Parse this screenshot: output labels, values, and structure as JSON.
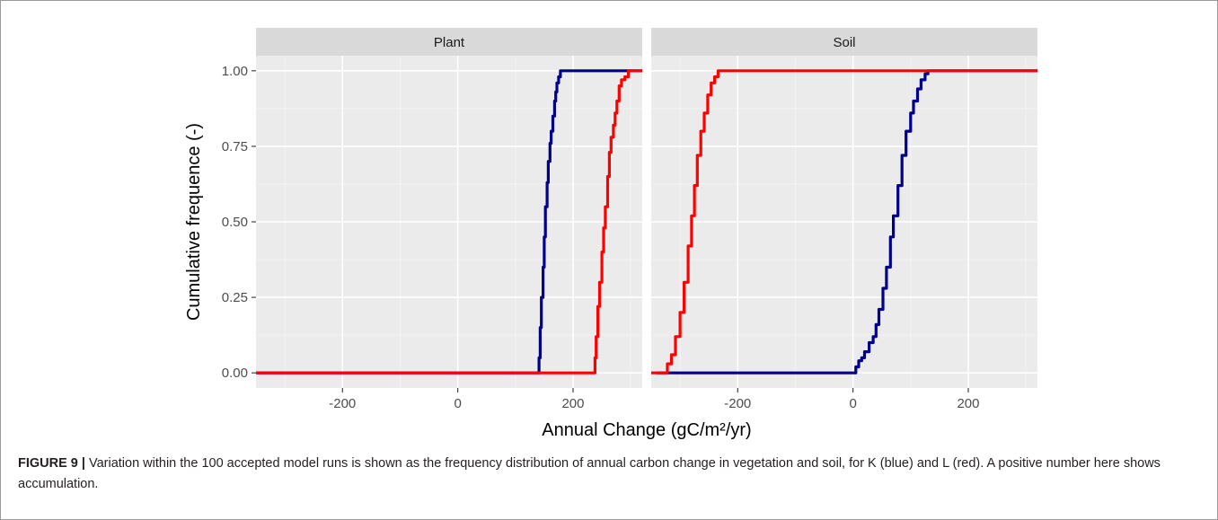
{
  "chart_data": {
    "type": "line",
    "ylabel": "Cumulative frequence (-)",
    "xlabel": "Annual Change  (gC/m²/yr)",
    "x_ticks": [
      -200,
      0,
      200
    ],
    "y_ticks": [
      0.0,
      0.25,
      0.5,
      0.75,
      1.0
    ],
    "y_tick_labels": [
      "0.00",
      "0.25",
      "0.50",
      "0.75",
      "1.00"
    ],
    "xlim": [
      -350,
      320
    ],
    "ylim": [
      -0.05,
      1.05
    ],
    "grid": true,
    "panels": [
      {
        "title": "Plant",
        "series": [
          {
            "color": "#00008b",
            "x": [
              -350,
              140,
              141,
              143,
              145,
              148,
              150,
              152,
              155,
              157,
              160,
              162,
              165,
              168,
              170,
              172,
              175,
              178,
              182,
              200,
              320
            ],
            "y": [
              0,
              0,
              0.05,
              0.15,
              0.25,
              0.35,
              0.45,
              0.55,
              0.63,
              0.7,
              0.76,
              0.8,
              0.85,
              0.9,
              0.93,
              0.96,
              0.98,
              1.0,
              1.0,
              1.0,
              1.0
            ]
          },
          {
            "color": "#ff0000",
            "x": [
              -350,
              236,
              238,
              240,
              243,
              246,
              250,
              253,
              256,
              260,
              263,
              266,
              270,
              273,
              276,
              280,
              284,
              290,
              296,
              320
            ],
            "y": [
              0,
              0,
              0.05,
              0.12,
              0.22,
              0.3,
              0.4,
              0.48,
              0.55,
              0.65,
              0.73,
              0.78,
              0.82,
              0.86,
              0.9,
              0.95,
              0.97,
              0.98,
              1.0,
              1.0
            ]
          }
        ]
      },
      {
        "title": "Soil",
        "series": [
          {
            "color": "#00008b",
            "x": [
              -340,
              -330,
              0,
              5,
              10,
              15,
              20,
              28,
              35,
              40,
              45,
              52,
              58,
              65,
              70,
              78,
              85,
              92,
              100,
              105,
              112,
              118,
              125,
              130,
              320
            ],
            "y": [
              0,
              0,
              0,
              0.02,
              0.04,
              0.05,
              0.07,
              0.1,
              0.12,
              0.16,
              0.21,
              0.28,
              0.35,
              0.45,
              0.52,
              0.62,
              0.72,
              0.8,
              0.86,
              0.9,
              0.94,
              0.97,
              0.99,
              1.0,
              1.0
            ]
          },
          {
            "color": "#ff0000",
            "x": [
              -350,
              -330,
              -322,
              -315,
              -308,
              -300,
              -293,
              -286,
              -280,
              -275,
              -270,
              -264,
              -258,
              -252,
              -246,
              -240,
              -234,
              -230,
              320
            ],
            "y": [
              0,
              0,
              0.03,
              0.06,
              0.12,
              0.2,
              0.3,
              0.42,
              0.52,
              0.62,
              0.72,
              0.8,
              0.86,
              0.92,
              0.96,
              0.98,
              1.0,
              1.0,
              1.0
            ]
          }
        ]
      }
    ]
  },
  "caption": {
    "label": "FIGURE 9 |",
    "text": " Variation within the 100 accepted model runs is shown as the frequency distribution of annual carbon change in vegetation and soil, for K (blue) and L (red). A positive number here shows accumulation."
  }
}
